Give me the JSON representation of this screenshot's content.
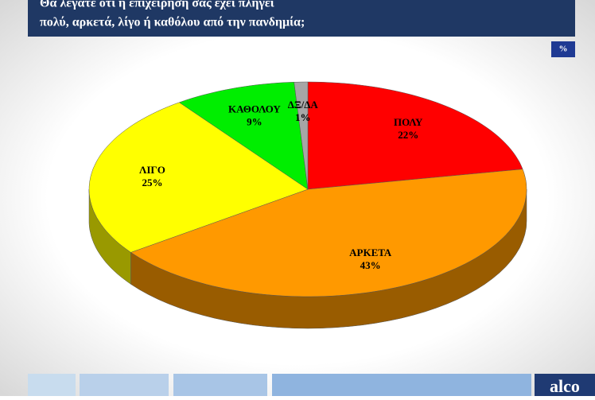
{
  "chart_data": {
    "type": "pie",
    "title": [
      "Θα λέγατε ότι η επιχείρηση σας έχει πληγεί",
      "πολύ, αρκετά, λίγο ή καθόλου από την πανδημία;"
    ],
    "unit_badge": "%",
    "logo": "alco",
    "categories": [
      "ΠΟΛΥ",
      "ΑΡΚΕΤΑ",
      "ΛΙΓΟ",
      "ΚΑΘΟΛΟΥ",
      "ΔΞ/ΔΑ"
    ],
    "values": [
      22,
      43,
      25,
      9,
      1
    ],
    "value_labels": [
      "22%",
      "43%",
      "25%",
      "9%",
      "1%"
    ],
    "colors": [
      "#ff0000",
      "#ff9900",
      "#ffff00",
      "#00ee00",
      "#a6a6a6"
    ]
  }
}
